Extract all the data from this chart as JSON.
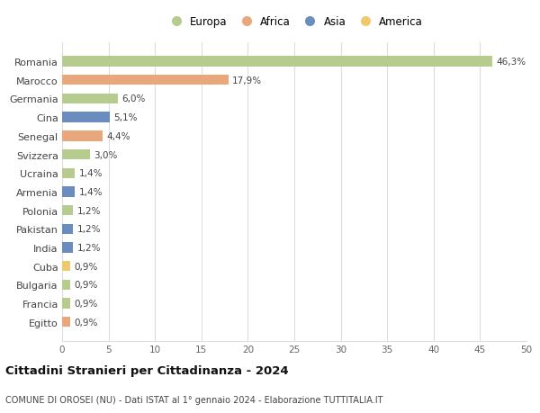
{
  "countries": [
    "Romania",
    "Marocco",
    "Germania",
    "Cina",
    "Senegal",
    "Svizzera",
    "Ucraina",
    "Armenia",
    "Polonia",
    "Pakistan",
    "India",
    "Cuba",
    "Bulgaria",
    "Francia",
    "Egitto"
  ],
  "values": [
    46.3,
    17.9,
    6.0,
    5.1,
    4.4,
    3.0,
    1.4,
    1.4,
    1.2,
    1.2,
    1.2,
    0.9,
    0.9,
    0.9,
    0.9
  ],
  "labels": [
    "46,3%",
    "17,9%",
    "6,0%",
    "5,1%",
    "4,4%",
    "3,0%",
    "1,4%",
    "1,4%",
    "1,2%",
    "1,2%",
    "1,2%",
    "0,9%",
    "0,9%",
    "0,9%",
    "0,9%"
  ],
  "continents": [
    "Europa",
    "Africa",
    "Europa",
    "Asia",
    "Africa",
    "Europa",
    "Europa",
    "Asia",
    "Europa",
    "Asia",
    "Asia",
    "America",
    "Europa",
    "Europa",
    "Africa"
  ],
  "colors": {
    "Europa": "#b5cc8e",
    "Africa": "#e8a87c",
    "Asia": "#6b8cbf",
    "America": "#f0c96e"
  },
  "legend_order": [
    "Europa",
    "Africa",
    "Asia",
    "America"
  ],
  "title": "Cittadini Stranieri per Cittadinanza - 2024",
  "subtitle": "COMUNE DI OROSEI (NU) - Dati ISTAT al 1° gennaio 2024 - Elaborazione TUTTITALIA.IT",
  "xlim": [
    0,
    50
  ],
  "xticks": [
    0,
    5,
    10,
    15,
    20,
    25,
    30,
    35,
    40,
    45,
    50
  ],
  "bg_color": "#ffffff",
  "grid_color": "#dddddd"
}
